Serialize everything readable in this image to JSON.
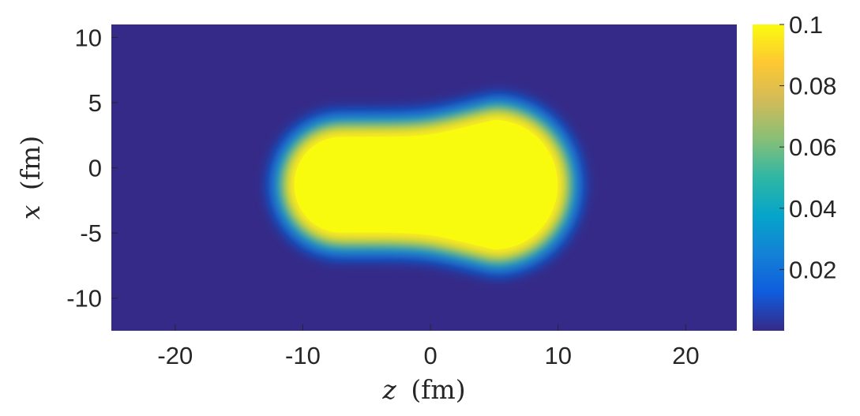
{
  "chart_data": {
    "type": "heatmap",
    "title": "",
    "xlabel_var": "z",
    "xlabel_unit": "(fm)",
    "ylabel_var": "x",
    "ylabel_unit": "(fm)",
    "xlim": [
      -25,
      24
    ],
    "ylim": [
      -12.5,
      11
    ],
    "x_ticks": [
      -20,
      -10,
      0,
      10,
      20
    ],
    "x_tick_labels": [
      "-20",
      "-10",
      "0",
      "10",
      "20"
    ],
    "y_ticks": [
      10,
      5,
      0,
      -5,
      -10
    ],
    "y_tick_labels": [
      "10",
      "5",
      "0",
      "-5",
      "-10"
    ],
    "colorbar": {
      "range": [
        0,
        0.1
      ],
      "ticks": [
        0.1,
        0.08,
        0.06,
        0.04,
        0.02
      ],
      "tick_labels": [
        "0.1",
        "0.08",
        "0.06",
        "0.04",
        "0.02"
      ],
      "colormap": "parula",
      "colors": [
        "#352a87",
        "#0f5cdd",
        "#1481d6",
        "#06a4ca",
        "#2eb7a4",
        "#87bf77",
        "#d1bb59",
        "#fec832",
        "#f9fb0e"
      ]
    },
    "density": {
      "description_values": "two-center saturated density blob",
      "saturation_value": 0.1,
      "background_value": 0.0,
      "lobes": [
        {
          "z_center": -7,
          "x_center": -1.3,
          "radius": 4.3
        },
        {
          "z_center": 5,
          "x_center": -1.3,
          "radius": 5.6
        }
      ],
      "neck": {
        "x_top": 3.0,
        "x_bottom": -5.6
      },
      "z_extent": [
        -13,
        10.5
      ],
      "x_extent": [
        -7.0,
        4.3
      ],
      "edge_width_fm": 1.4
    },
    "grid": false,
    "legend": "none"
  }
}
